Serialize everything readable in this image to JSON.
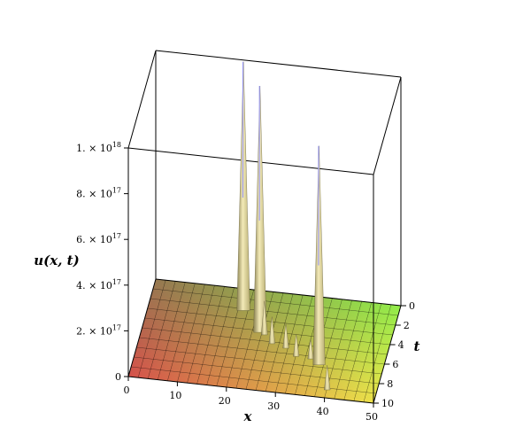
{
  "chart_data": {
    "type": "surface3d",
    "xlabel": "x",
    "ylabel": "t",
    "zlabel": "u(x, t)",
    "xlim": [
      0,
      50
    ],
    "ylim": [
      0,
      10
    ],
    "zlim": [
      0,
      1e+18
    ],
    "x_ticks": [
      "0",
      "10",
      "20",
      "30",
      "40",
      "50"
    ],
    "y_ticks": [
      "0",
      "2",
      "4",
      "6",
      "8",
      "10"
    ],
    "z_ticks": [
      {
        "mantissa": "",
        "exp": "",
        "plain": "0"
      },
      {
        "mantissa": "2. × 10",
        "exp": "17",
        "plain": ""
      },
      {
        "mantissa": "4. × 10",
        "exp": "17",
        "plain": ""
      },
      {
        "mantissa": "6. × 10",
        "exp": "17",
        "plain": ""
      },
      {
        "mantissa": "8. × 10",
        "exp": "17",
        "plain": ""
      },
      {
        "mantissa": "1. × 10",
        "exp": "18",
        "plain": ""
      }
    ],
    "grid": true,
    "box": true,
    "colors": {
      "low_x_near_t": "#e84a4a",
      "high_x_near_t": "#f2f24a",
      "low_x_far_t": "#7a7a55",
      "high_x_far_t": "#4ae84a"
    },
    "peaks": [
      {
        "x": 19,
        "t": 2.0,
        "u": 1.08e+18
      },
      {
        "x": 23.5,
        "t": 4.0,
        "u": 1.07e+18
      },
      {
        "x": 37,
        "t": 6.6,
        "u": 9.5e+17
      },
      {
        "x": 19,
        "t": 1.4,
        "u": 3.5e+17
      },
      {
        "x": 24.5,
        "t": 4.2,
        "u": 1.4e+17
      },
      {
        "x": 26.5,
        "t": 5.0,
        "u": 1.1e+17
      },
      {
        "x": 29.5,
        "t": 5.3,
        "u": 1e+17
      },
      {
        "x": 32,
        "t": 6.0,
        "u": 9e+16
      },
      {
        "x": 35,
        "t": 6.1,
        "u": 8e+16
      },
      {
        "x": 40,
        "t": 9.0,
        "u": 1e+17
      }
    ]
  }
}
